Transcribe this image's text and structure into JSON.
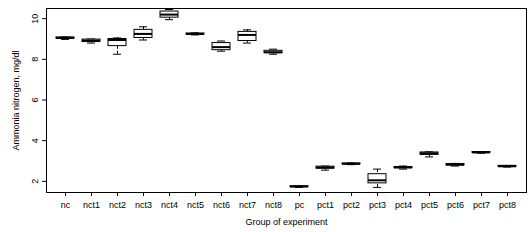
{
  "chart_data": {
    "type": "box",
    "x_label": "Group of experiment",
    "y_label": "Ammonia nitrogen, mg/dl",
    "categories": [
      "nc",
      "nct1",
      "nct2",
      "nct3",
      "nct4",
      "nct5",
      "nct6",
      "nct7",
      "nct8",
      "pc",
      "pct1",
      "pct2",
      "pct3",
      "pct4",
      "pct5",
      "pct6",
      "pct7",
      "pct8"
    ],
    "min": [
      8.98,
      8.8,
      8.25,
      8.95,
      9.95,
      9.2,
      8.4,
      8.8,
      8.25,
      1.7,
      2.55,
      2.82,
      1.7,
      2.6,
      3.2,
      2.75,
      3.38,
      2.7
    ],
    "q1": [
      9.02,
      8.85,
      8.65,
      9.05,
      10.05,
      9.22,
      8.45,
      8.9,
      8.3,
      1.72,
      2.62,
      2.84,
      1.9,
      2.65,
      3.3,
      2.78,
      3.4,
      2.72
    ],
    "median": [
      9.05,
      8.92,
      8.95,
      9.25,
      10.2,
      9.25,
      8.6,
      9.2,
      8.35,
      1.74,
      2.68,
      2.86,
      2.05,
      2.68,
      3.38,
      2.82,
      3.42,
      2.74
    ],
    "q3": [
      9.08,
      8.97,
      9.0,
      9.45,
      10.35,
      9.27,
      8.8,
      9.35,
      8.42,
      1.76,
      2.72,
      2.88,
      2.35,
      2.7,
      3.42,
      2.85,
      3.44,
      2.76
    ],
    "max": [
      9.1,
      9.0,
      9.05,
      9.6,
      10.45,
      9.3,
      8.9,
      9.45,
      8.5,
      1.78,
      2.75,
      2.9,
      2.6,
      2.75,
      3.45,
      2.88,
      3.45,
      2.78
    ],
    "color": "#000000",
    "ylim": [
      1.45,
      10.5
    ],
    "yticks": [
      2,
      4,
      6,
      8,
      10
    ],
    "grid": false
  }
}
